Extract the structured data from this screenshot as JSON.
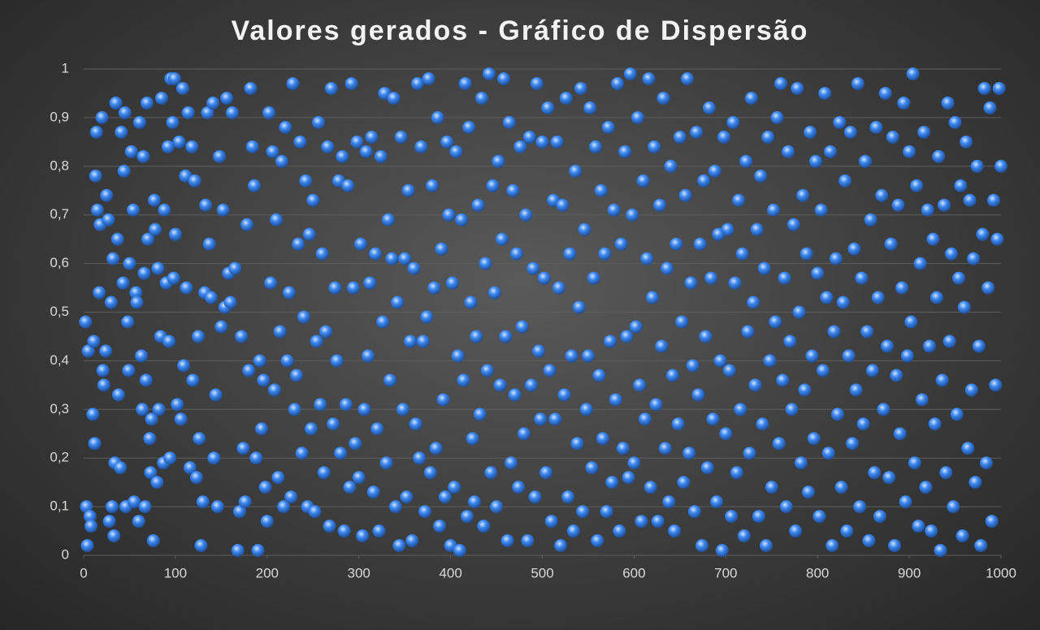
{
  "chart_data": {
    "type": "scatter",
    "title": "Valores gerados - Gráfico de Dispersão",
    "color": "#3b86ee",
    "grid": true,
    "xlim": [
      0,
      1000
    ],
    "xticks": [
      0,
      100,
      200,
      300,
      400,
      500,
      600,
      700,
      800,
      900,
      1000
    ],
    "ylim": [
      0,
      1
    ],
    "yticks": [
      0,
      {
        "value": 0.1,
        "label": "0,1"
      },
      {
        "value": 0.2,
        "label": "0,2"
      },
      {
        "value": 0.3,
        "label": "0,3"
      },
      {
        "value": 0.4,
        "label": "0,4"
      },
      {
        "value": 0.5,
        "label": "0,5"
      },
      {
        "value": 0.6,
        "label": "0,6"
      },
      {
        "value": 0.7,
        "label": "0,7"
      },
      {
        "value": 0.8,
        "label": "0,8"
      },
      {
        "value": 0.9,
        "label": "0,9"
      },
      1
    ],
    "x": [
      2,
      3,
      4,
      5,
      7,
      8,
      10,
      11,
      12,
      13,
      14,
      15,
      17,
      18,
      20,
      21,
      22,
      24,
      25,
      27,
      28,
      30,
      31,
      32,
      33,
      34,
      35,
      37,
      38,
      40,
      41,
      43,
      44,
      45,
      46,
      48,
      49,
      50,
      52,
      54,
      55,
      57,
      58,
      60,
      61,
      63,
      64,
      65,
      66,
      67,
      68,
      69,
      70,
      72,
      73,
      74,
      76,
      77,
      78,
      80,
      81,
      82,
      84,
      85,
      87,
      88,
      90,
      92,
      93,
      94,
      95,
      97,
      98,
      99,
      100,
      102,
      104,
      106,
      108,
      109,
      111,
      112,
      114,
      116,
      118,
      119,
      121,
      123,
      125,
      126,
      128,
      130,
      132,
      133,
      135,
      137,
      139,
      141,
      142,
      144,
      146,
      148,
      150,
      152,
      154,
      156,
      158,
      160,
      162,
      165,
      168,
      170,
      172,
      174,
      176,
      178,
      180,
      182,
      184,
      186,
      188,
      190,
      192,
      194,
      196,
      198,
      200,
      202,
      204,
      206,
      208,
      210,
      212,
      214,
      216,
      218,
      220,
      222,
      224,
      226,
      228,
      230,
      232,
      234,
      236,
      238,
      240,
      242,
      244,
      246,
      248,
      250,
      252,
      254,
      256,
      258,
      260,
      262,
      264,
      266,
      268,
      270,
      272,
      274,
      276,
      278,
      280,
      282,
      284,
      286,
      288,
      290,
      292,
      294,
      296,
      298,
      300,
      302,
      304,
      306,
      308,
      310,
      312,
      314,
      316,
      318,
      320,
      322,
      324,
      326,
      328,
      330,
      332,
      334,
      336,
      338,
      340,
      342,
      344,
      346,
      348,
      350,
      352,
      354,
      356,
      358,
      360,
      362,
      364,
      366,
      368,
      370,
      372,
      374,
      376,
      378,
      380,
      382,
      384,
      386,
      388,
      390,
      392,
      394,
      396,
      398,
      400,
      402,
      404,
      406,
      408,
      410,
      412,
      414,
      416,
      418,
      420,
      422,
      424,
      426,
      428,
      430,
      432,
      434,
      436,
      438,
      440,
      442,
      444,
      446,
      448,
      450,
      452,
      454,
      456,
      458,
      460,
      462,
      464,
      466,
      468,
      470,
      472,
      474,
      476,
      478,
      480,
      482,
      484,
      486,
      488,
      490,
      492,
      494,
      496,
      498,
      500,
      502,
      504,
      506,
      508,
      510,
      512,
      514,
      516,
      518,
      520,
      522,
      524,
      526,
      528,
      530,
      532,
      534,
      536,
      538,
      540,
      542,
      544,
      546,
      548,
      550,
      552,
      554,
      556,
      558,
      560,
      562,
      564,
      566,
      568,
      570,
      572,
      574,
      576,
      578,
      580,
      582,
      584,
      586,
      588,
      590,
      592,
      594,
      596,
      598,
      600,
      602,
      604,
      606,
      608,
      610,
      612,
      614,
      616,
      618,
      620,
      622,
      624,
      626,
      628,
      630,
      632,
      634,
      636,
      638,
      640,
      642,
      644,
      646,
      648,
      650,
      652,
      654,
      656,
      658,
      660,
      662,
      664,
      666,
      668,
      670,
      672,
      674,
      676,
      678,
      680,
      682,
      684,
      686,
      688,
      690,
      692,
      694,
      696,
      698,
      700,
      702,
      704,
      706,
      708,
      710,
      712,
      714,
      716,
      718,
      720,
      722,
      724,
      726,
      728,
      730,
      732,
      734,
      736,
      738,
      740,
      742,
      744,
      746,
      748,
      750,
      752,
      754,
      756,
      758,
      760,
      762,
      764,
      766,
      768,
      770,
      772,
      774,
      776,
      778,
      780,
      782,
      784,
      786,
      788,
      790,
      792,
      794,
      796,
      798,
      800,
      802,
      804,
      806,
      808,
      810,
      812,
      814,
      816,
      818,
      820,
      822,
      824,
      826,
      828,
      830,
      832,
      834,
      836,
      838,
      840,
      842,
      844,
      846,
      848,
      850,
      852,
      854,
      856,
      858,
      860,
      862,
      864,
      866,
      868,
      870,
      872,
      874,
      876,
      878,
      880,
      882,
      884,
      886,
      888,
      890,
      892,
      894,
      896,
      898,
      900,
      902,
      904,
      906,
      908,
      910,
      912,
      914,
      916,
      918,
      920,
      922,
      924,
      926,
      928,
      930,
      932,
      934,
      936,
      938,
      940,
      942,
      944,
      946,
      948,
      950,
      952,
      954,
      956,
      958,
      960,
      962,
      964,
      966,
      968,
      970,
      972,
      974,
      976,
      978,
      980,
      982,
      984,
      986,
      988,
      990,
      992,
      994,
      996,
      998,
      1000
    ],
    "values": [
      0.48,
      0.1,
      0.02,
      0.42,
      0.08,
      0.06,
      0.29,
      0.44,
      0.23,
      0.78,
      0.87,
      0.71,
      0.54,
      0.68,
      0.9,
      0.38,
      0.35,
      0.42,
      0.74,
      0.69,
      0.07,
      0.52,
      0.1,
      0.61,
      0.04,
      0.19,
      0.93,
      0.65,
      0.33,
      0.18,
      0.87,
      0.56,
      0.79,
      0.91,
      0.1,
      0.48,
      0.38,
      0.6,
      0.83,
      0.71,
      0.11,
      0.54,
      0.52,
      0.07,
      0.89,
      0.41,
      0.3,
      0.82,
      0.58,
      0.1,
      0.36,
      0.93,
      0.65,
      0.24,
      0.17,
      0.28,
      0.03,
      0.73,
      0.67,
      0.15,
      0.59,
      0.3,
      0.45,
      0.94,
      0.19,
      0.71,
      0.56,
      0.84,
      0.44,
      0.2,
      0.98,
      0.89,
      0.57,
      0.98,
      0.66,
      0.31,
      0.85,
      0.28,
      0.96,
      0.39,
      0.78,
      0.55,
      0.91,
      0.18,
      0.84,
      0.36,
      0.77,
      0.16,
      0.45,
      0.24,
      0.02,
      0.11,
      0.54,
      0.72,
      0.91,
      0.64,
      0.53,
      0.93,
      0.2,
      0.33,
      0.1,
      0.82,
      0.47,
      0.71,
      0.51,
      0.94,
      0.58,
      0.52,
      0.91,
      0.59,
      0.01,
      0.09,
      0.45,
      0.22,
      0.11,
      0.68,
      0.38,
      0.96,
      0.84,
      0.76,
      0.2,
      0.01,
      0.4,
      0.26,
      0.36,
      0.14,
      0.07,
      0.91,
      0.56,
      0.83,
      0.34,
      0.69,
      0.16,
      0.46,
      0.81,
      0.1,
      0.88,
      0.4,
      0.54,
      0.12,
      0.97,
      0.3,
      0.37,
      0.64,
      0.85,
      0.21,
      0.49,
      0.77,
      0.1,
      0.66,
      0.26,
      0.73,
      0.09,
      0.44,
      0.89,
      0.31,
      0.62,
      0.17,
      0.46,
      0.84,
      0.06,
      0.96,
      0.27,
      0.55,
      0.4,
      0.77,
      0.21,
      0.82,
      0.05,
      0.31,
      0.76,
      0.14,
      0.97,
      0.55,
      0.23,
      0.85,
      0.16,
      0.64,
      0.04,
      0.3,
      0.83,
      0.41,
      0.56,
      0.86,
      0.13,
      0.62,
      0.26,
      0.05,
      0.82,
      0.48,
      0.95,
      0.19,
      0.69,
      0.36,
      0.61,
      0.94,
      0.1,
      0.52,
      0.02,
      0.86,
      0.3,
      0.61,
      0.12,
      0.75,
      0.44,
      0.03,
      0.59,
      0.27,
      0.97,
      0.2,
      0.84,
      0.44,
      0.09,
      0.49,
      0.98,
      0.17,
      0.76,
      0.55,
      0.22,
      0.9,
      0.06,
      0.63,
      0.32,
      0.12,
      0.85,
      0.7,
      0.02,
      0.56,
      0.14,
      0.83,
      0.41,
      0.01,
      0.69,
      0.36,
      0.97,
      0.08,
      0.88,
      0.52,
      0.24,
      0.11,
      0.45,
      0.72,
      0.29,
      0.94,
      0.06,
      0.6,
      0.38,
      0.99,
      0.17,
      0.76,
      0.54,
      0.1,
      0.81,
      0.35,
      0.65,
      0.98,
      0.45,
      0.03,
      0.89,
      0.19,
      0.75,
      0.33,
      0.62,
      0.14,
      0.84,
      0.47,
      0.25,
      0.7,
      0.03,
      0.86,
      0.35,
      0.59,
      0.12,
      0.97,
      0.42,
      0.28,
      0.85,
      0.57,
      0.17,
      0.92,
      0.38,
      0.07,
      0.73,
      0.28,
      0.85,
      0.55,
      0.02,
      0.72,
      0.33,
      0.94,
      0.12,
      0.62,
      0.41,
      0.05,
      0.79,
      0.23,
      0.51,
      0.96,
      0.09,
      0.67,
      0.3,
      0.41,
      0.92,
      0.18,
      0.57,
      0.84,
      0.03,
      0.37,
      0.75,
      0.24,
      0.62,
      0.09,
      0.88,
      0.44,
      0.15,
      0.71,
      0.32,
      0.97,
      0.05,
      0.64,
      0.22,
      0.83,
      0.45,
      0.16,
      0.99,
      0.7,
      0.19,
      0.47,
      0.9,
      0.35,
      0.07,
      0.77,
      0.28,
      0.61,
      0.98,
      0.14,
      0.53,
      0.84,
      0.31,
      0.07,
      0.72,
      0.43,
      0.94,
      0.22,
      0.59,
      0.11,
      0.8,
      0.37,
      0.05,
      0.64,
      0.27,
      0.86,
      0.48,
      0.15,
      0.74,
      0.98,
      0.21,
      0.56,
      0.39,
      0.09,
      0.87,
      0.33,
      0.64,
      0.02,
      0.77,
      0.45,
      0.18,
      0.92,
      0.57,
      0.28,
      0.79,
      0.11,
      0.66,
      0.4,
      0.01,
      0.86,
      0.25,
      0.67,
      0.38,
      0.08,
      0.89,
      0.56,
      0.17,
      0.73,
      0.3,
      0.62,
      0.04,
      0.81,
      0.46,
      0.21,
      0.94,
      0.52,
      0.35,
      0.67,
      0.08,
      0.78,
      0.27,
      0.59,
      0.02,
      0.86,
      0.4,
      0.14,
      0.71,
      0.48,
      0.9,
      0.23,
      0.97,
      0.36,
      0.57,
      0.1,
      0.83,
      0.44,
      0.3,
      0.68,
      0.05,
      0.96,
      0.5,
      0.19,
      0.74,
      0.34,
      0.62,
      0.13,
      0.87,
      0.41,
      0.24,
      0.81,
      0.58,
      0.08,
      0.71,
      0.38,
      0.95,
      0.53,
      0.21,
      0.83,
      0.02,
      0.46,
      0.61,
      0.29,
      0.89,
      0.14,
      0.52,
      0.77,
      0.05,
      0.41,
      0.87,
      0.23,
      0.63,
      0.34,
      0.97,
      0.1,
      0.57,
      0.27,
      0.81,
      0.46,
      0.03,
      0.69,
      0.38,
      0.17,
      0.88,
      0.53,
      0.08,
      0.74,
      0.3,
      0.95,
      0.43,
      0.16,
      0.64,
      0.86,
      0.02,
      0.37,
      0.72,
      0.25,
      0.55,
      0.93,
      0.11,
      0.41,
      0.83,
      0.48,
      0.99,
      0.19,
      0.76,
      0.06,
      0.6,
      0.32,
      0.87,
      0.14,
      0.71,
      0.43,
      0.05,
      0.65,
      0.27,
      0.53,
      0.82,
      0.01,
      0.36,
      0.72,
      0.17,
      0.93,
      0.44,
      0.62,
      0.1,
      0.89,
      0.29,
      0.57,
      0.76,
      0.04,
      0.51,
      0.85,
      0.22,
      0.73,
      0.34,
      0.61,
      0.15,
      0.8,
      0.43,
      0.02,
      0.66,
      0.96,
      0.19,
      0.55,
      0.92,
      0.07,
      0.73,
      0.35,
      0.65,
      0.96,
      0.8
    ]
  }
}
